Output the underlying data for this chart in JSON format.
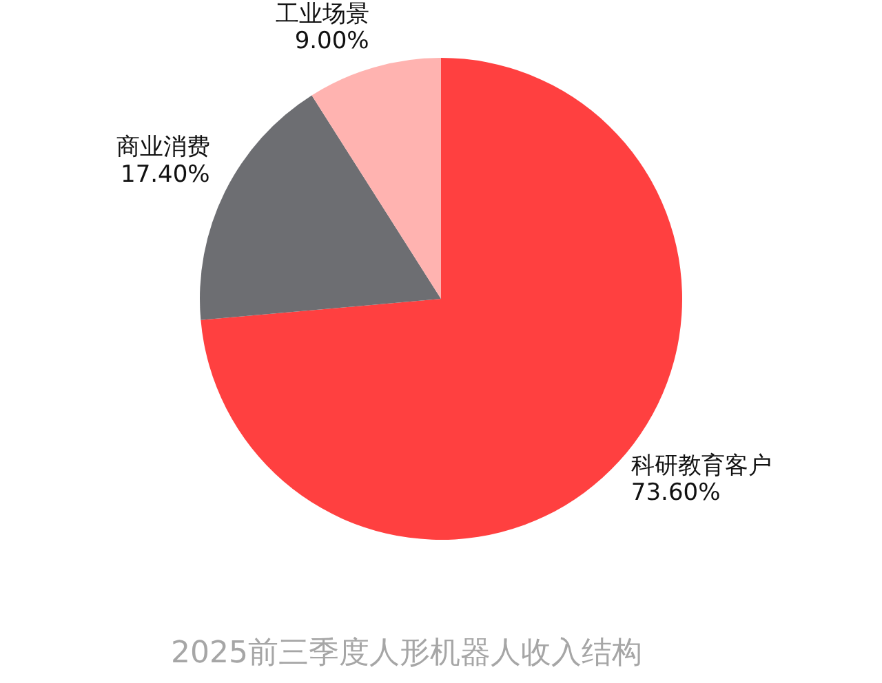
{
  "chart_data": {
    "type": "pie",
    "title": "2025前三季度人形机器人收入结构",
    "categories": [
      "科研教育客户",
      "商业消费",
      "工业场景"
    ],
    "values": [
      73.6,
      17.4,
      9.0
    ],
    "colors": [
      "#ff4040",
      "#6d6e72",
      "#ffb3b0"
    ],
    "value_labels": [
      "73.60%",
      "17.40%",
      "9.00%"
    ],
    "legend": false
  }
}
